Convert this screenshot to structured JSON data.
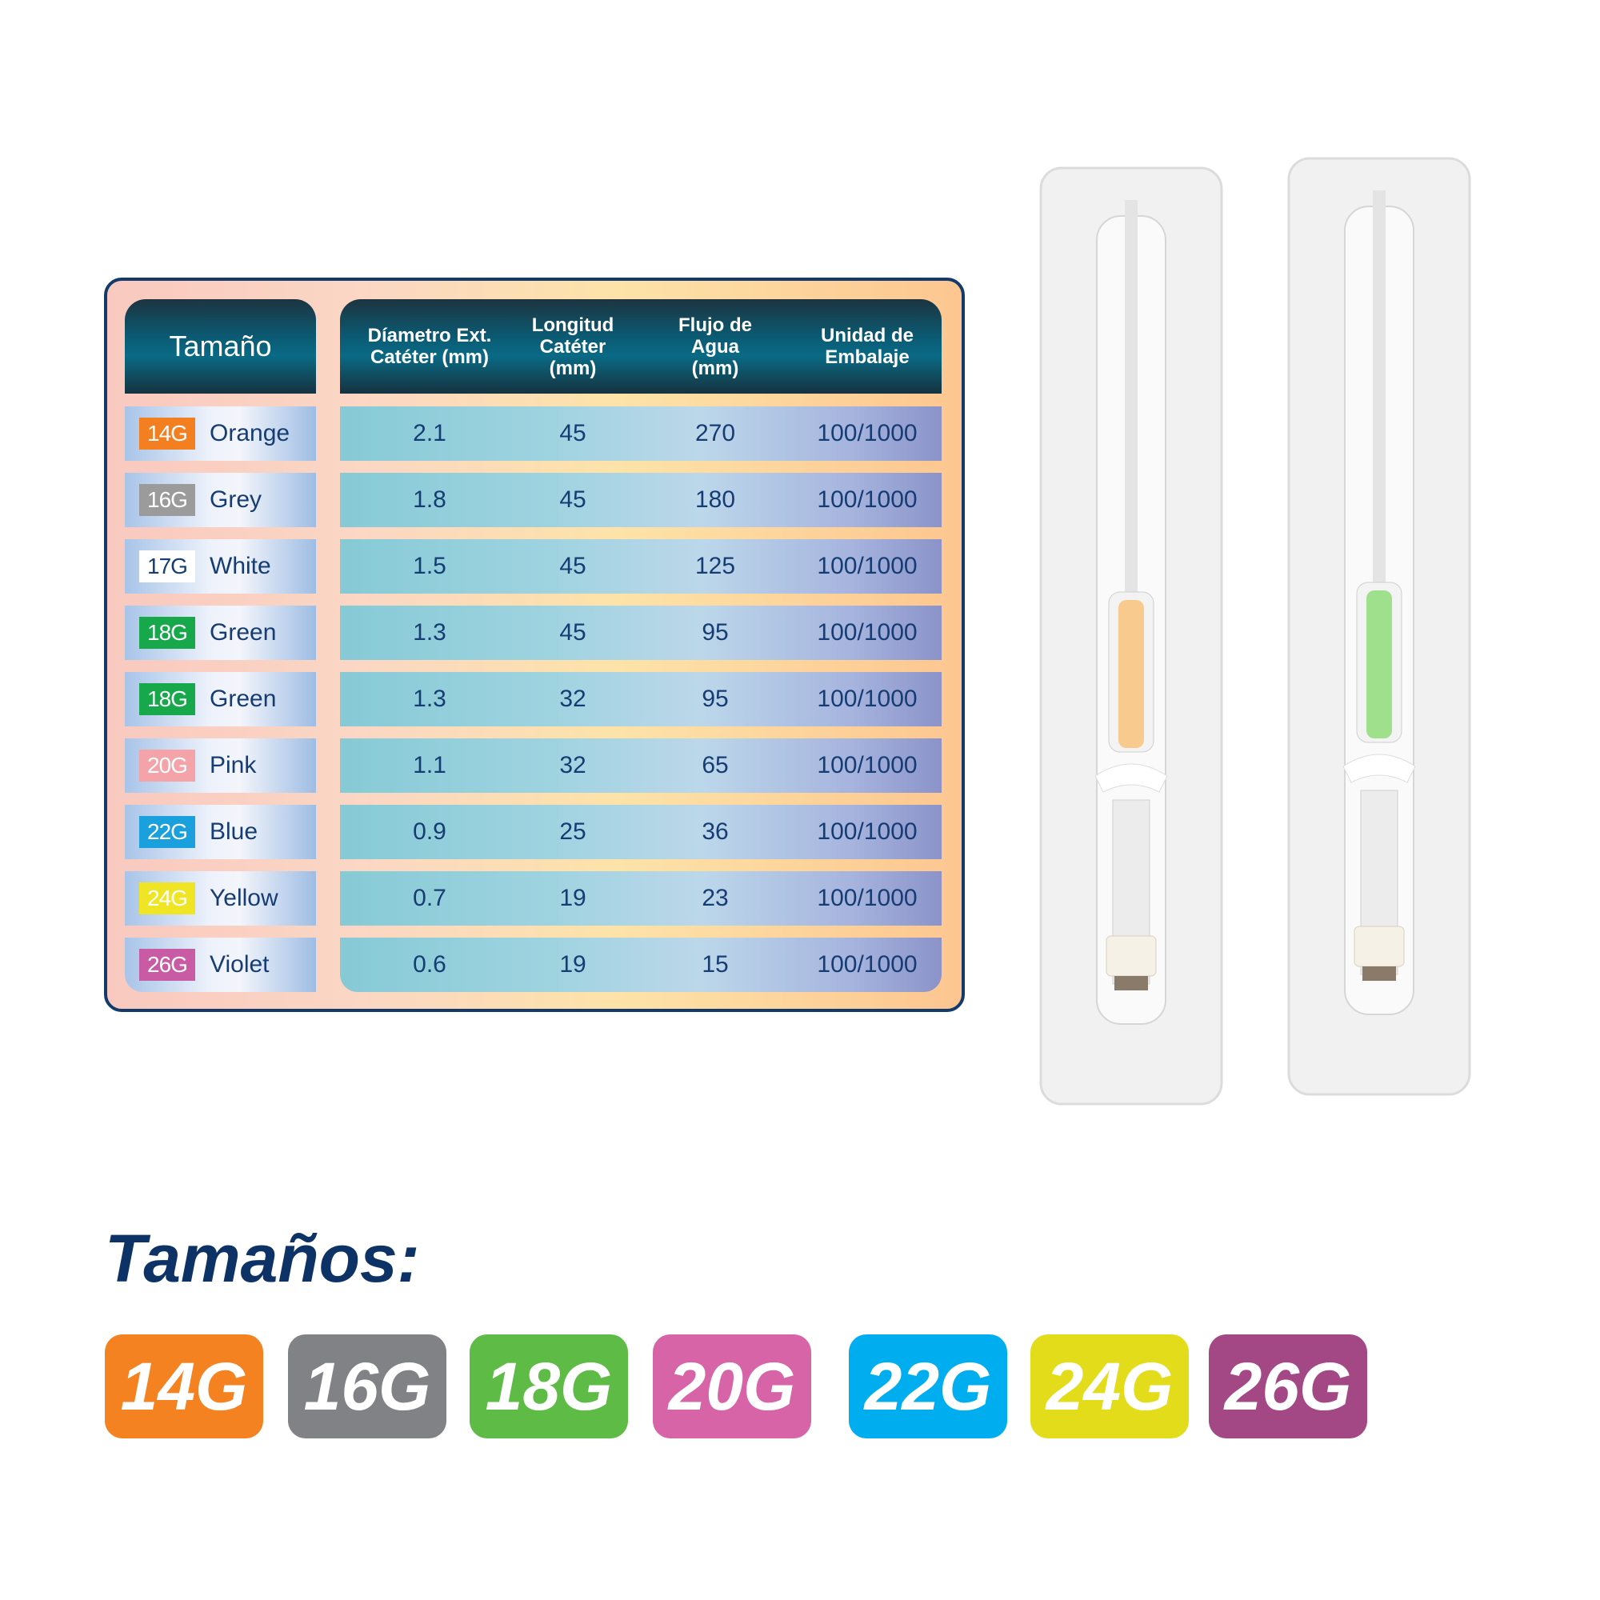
{
  "table": {
    "size_header": "Tamaño",
    "columns": [
      "Díametro Ext. Catéter (mm)",
      "Longitud Catéter (mm)",
      "Flujo de Agua (mm)",
      "Unidad de Embalaje"
    ],
    "column_lines": [
      [
        "Díametro Ext.",
        "Catéter (mm)"
      ],
      [
        "Longitud",
        "Catéter",
        "(mm)"
      ],
      [
        "Flujo de",
        "Agua",
        "(mm)"
      ],
      [
        "Unidad de",
        "Embalaje"
      ]
    ],
    "rows": [
      {
        "gauge": "14G",
        "color_name": "Orange",
        "color": "#f47f20",
        "values": [
          "2.1",
          "45",
          "270",
          "100/1000"
        ]
      },
      {
        "gauge": "16G",
        "color_name": "Grey",
        "color": "#9b9b9b",
        "values": [
          "1.8",
          "45",
          "180",
          "100/1000"
        ]
      },
      {
        "gauge": "17G",
        "color_name": "White",
        "color": "#ffffff",
        "values": [
          "1.5",
          "45",
          "125",
          "100/1000"
        ]
      },
      {
        "gauge": "18G",
        "color_name": "Green",
        "color": "#16a84a",
        "values": [
          "1.3",
          "45",
          "95",
          "100/1000"
        ]
      },
      {
        "gauge": "18G",
        "color_name": "Green",
        "color": "#16a84a",
        "values": [
          "1.3",
          "32",
          "95",
          "100/1000"
        ]
      },
      {
        "gauge": "20G",
        "color_name": "Pink",
        "color": "#f4a3a8",
        "values": [
          "1.1",
          "32",
          "65",
          "100/1000"
        ]
      },
      {
        "gauge": "22G",
        "color_name": "Blue",
        "color": "#1aa0dd",
        "values": [
          "0.9",
          "25",
          "36",
          "100/1000"
        ]
      },
      {
        "gauge": "24G",
        "color_name": "Yellow",
        "color": "#f0e524",
        "values": [
          "0.7",
          "19",
          "23",
          "100/1000"
        ]
      },
      {
        "gauge": "26G",
        "color_name": "Violet",
        "color": "#c95aa4",
        "values": [
          "0.6",
          "19",
          "15",
          "100/1000"
        ]
      }
    ]
  },
  "sizes_title": "Tamaños:",
  "badges": [
    {
      "label": "14G",
      "color": "#f58220"
    },
    {
      "label": "16G",
      "color": "#818285"
    },
    {
      "label": "18G",
      "color": "#5dbb46"
    },
    {
      "label": "20G",
      "color": "#d664a6"
    },
    {
      "label": "22G",
      "color": "#00aeef"
    },
    {
      "label": "24G",
      "color": "#e2dc1b"
    },
    {
      "label": "26G",
      "color": "#a34885"
    }
  ],
  "products": [
    {
      "name": "catheter-package-orange",
      "hub_color": "#f9c27a"
    },
    {
      "name": "catheter-package-green",
      "hub_color": "#8fdc7a"
    }
  ]
}
